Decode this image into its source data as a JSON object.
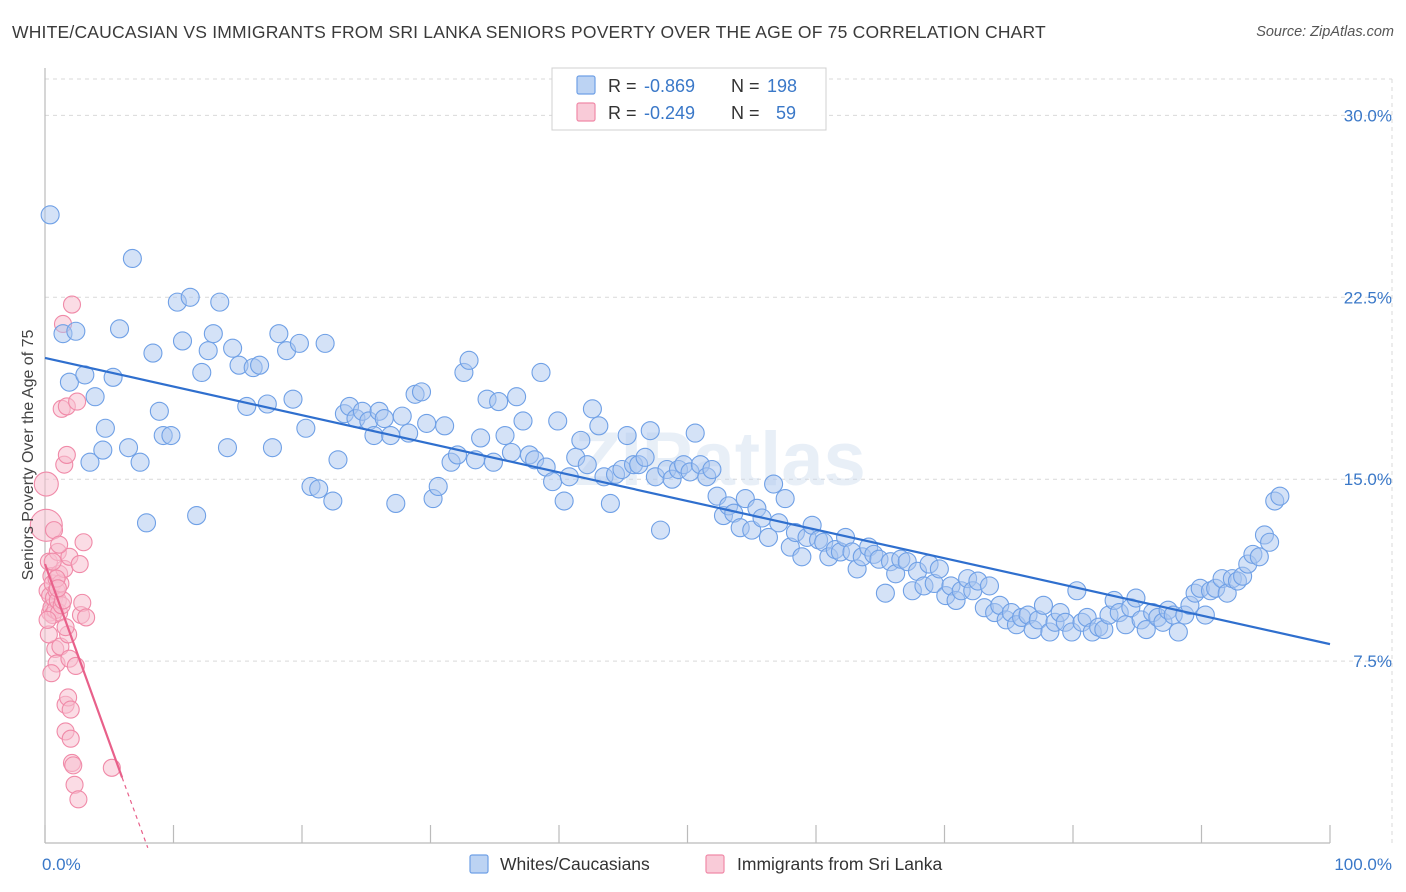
{
  "title": "WHITE/CAUCASIAN VS IMMIGRANTS FROM SRI LANKA SENIORS POVERTY OVER THE AGE OF 75 CORRELATION CHART",
  "source": "Source: ZipAtlas.com",
  "watermark": "ZIPatlas",
  "colors": {
    "blue": "#6fa0e6",
    "blue_fill": "#a9c6f0",
    "blue_line": "#2f6fce",
    "pink": "#f08aa8",
    "pink_fill": "#f7bfd0",
    "pink_line": "#e8608a",
    "tick_label": "#3a78c8",
    "grid": "#d9d9d9"
  },
  "legend_top": {
    "rows": [
      {
        "r_label": "R =",
        "r_value": "-0.869",
        "n_label": "N =",
        "n_value": "198"
      },
      {
        "r_label": "R =",
        "r_value": "-0.249",
        "n_label": "N =",
        "n_value": "59"
      }
    ]
  },
  "legend_bottom": [
    "Whites/Caucasians",
    "Immigrants from Sri Lanka"
  ],
  "chart_data": {
    "type": "scatter",
    "title": "WHITE/CAUCASIAN VS IMMIGRANTS FROM SRI LANKA SENIORS POVERTY OVER THE AGE OF 75 CORRELATION CHART",
    "xlabel": "",
    "ylabel": "Seniors Poverty Over the Age of 75",
    "xlim": [
      0,
      100
    ],
    "ylim": [
      0,
      31.5
    ],
    "x_tick_labels": [
      "0.0%",
      "100.0%"
    ],
    "y_ticks": [
      7.5,
      15.0,
      22.5,
      30.0
    ],
    "y_tick_labels": [
      "7.5%",
      "15.0%",
      "22.5%",
      "30.0%"
    ],
    "grid": true,
    "legend_position": "top-center",
    "series": [
      {
        "name": "Whites/Caucasians",
        "R": -0.869,
        "N": 198,
        "trend": {
          "x": [
            0,
            100
          ],
          "y": [
            20.0,
            8.2
          ]
        },
        "points": [
          [
            0.4,
            25.9
          ],
          [
            1.4,
            21.0
          ],
          [
            1.9,
            19.0
          ],
          [
            2.4,
            21.1
          ],
          [
            3.1,
            19.3
          ],
          [
            3.5,
            15.7
          ],
          [
            3.9,
            18.4
          ],
          [
            4.5,
            16.2
          ],
          [
            4.7,
            17.1
          ],
          [
            5.3,
            19.2
          ],
          [
            5.8,
            21.2
          ],
          [
            6.5,
            16.3
          ],
          [
            6.8,
            24.1
          ],
          [
            7.4,
            15.7
          ],
          [
            7.9,
            13.2
          ],
          [
            8.4,
            20.2
          ],
          [
            8.9,
            17.8
          ],
          [
            9.2,
            16.8
          ],
          [
            9.8,
            16.8
          ],
          [
            10.3,
            22.3
          ],
          [
            10.7,
            20.7
          ],
          [
            11.3,
            22.5
          ],
          [
            11.8,
            13.5
          ],
          [
            12.2,
            19.4
          ],
          [
            12.7,
            20.3
          ],
          [
            13.1,
            21.0
          ],
          [
            13.6,
            22.3
          ],
          [
            14.2,
            16.3
          ],
          [
            14.6,
            20.4
          ],
          [
            15.1,
            19.7
          ],
          [
            15.7,
            18.0
          ],
          [
            16.2,
            19.6
          ],
          [
            16.7,
            19.7
          ],
          [
            17.3,
            18.1
          ],
          [
            17.7,
            16.3
          ],
          [
            18.2,
            21.0
          ],
          [
            18.8,
            20.3
          ],
          [
            19.3,
            18.3
          ],
          [
            19.8,
            20.6
          ],
          [
            20.3,
            17.1
          ],
          [
            20.7,
            14.7
          ],
          [
            21.3,
            14.6
          ],
          [
            21.8,
            20.6
          ],
          [
            22.4,
            14.1
          ],
          [
            22.8,
            15.8
          ],
          [
            23.3,
            17.7
          ],
          [
            23.7,
            18.0
          ],
          [
            24.2,
            17.5
          ],
          [
            24.7,
            17.8
          ],
          [
            25.2,
            17.4
          ],
          [
            25.6,
            16.8
          ],
          [
            26.0,
            17.8
          ],
          [
            26.4,
            17.5
          ],
          [
            26.9,
            16.8
          ],
          [
            27.3,
            14.0
          ],
          [
            27.8,
            17.6
          ],
          [
            28.3,
            16.9
          ],
          [
            28.8,
            18.5
          ],
          [
            29.3,
            18.6
          ],
          [
            29.7,
            17.3
          ],
          [
            30.2,
            14.2
          ],
          [
            30.6,
            14.7
          ],
          [
            31.1,
            17.2
          ],
          [
            31.6,
            15.7
          ],
          [
            32.1,
            16.0
          ],
          [
            32.6,
            19.4
          ],
          [
            33.0,
            19.9
          ],
          [
            33.5,
            15.8
          ],
          [
            33.9,
            16.7
          ],
          [
            34.4,
            18.3
          ],
          [
            34.9,
            15.7
          ],
          [
            35.3,
            18.2
          ],
          [
            35.8,
            16.8
          ],
          [
            36.3,
            16.1
          ],
          [
            36.7,
            18.4
          ],
          [
            37.2,
            17.4
          ],
          [
            37.7,
            16.0
          ],
          [
            38.1,
            15.8
          ],
          [
            38.6,
            19.4
          ],
          [
            39.0,
            15.5
          ],
          [
            39.5,
            14.9
          ],
          [
            39.9,
            17.4
          ],
          [
            40.4,
            14.1
          ],
          [
            40.8,
            15.1
          ],
          [
            41.3,
            15.9
          ],
          [
            41.7,
            16.6
          ],
          [
            42.2,
            15.6
          ],
          [
            42.6,
            17.9
          ],
          [
            43.1,
            17.2
          ],
          [
            43.5,
            15.1
          ],
          [
            44.0,
            14.0
          ],
          [
            44.4,
            15.2
          ],
          [
            44.9,
            15.4
          ],
          [
            45.3,
            16.8
          ],
          [
            45.8,
            15.6
          ],
          [
            46.2,
            15.6
          ],
          [
            46.7,
            15.9
          ],
          [
            47.1,
            17.0
          ],
          [
            47.5,
            15.1
          ],
          [
            47.9,
            12.9
          ],
          [
            48.4,
            15.4
          ],
          [
            48.8,
            15.0
          ],
          [
            49.3,
            15.4
          ],
          [
            49.7,
            15.6
          ],
          [
            50.2,
            15.3
          ],
          [
            50.6,
            16.9
          ],
          [
            51.0,
            15.6
          ],
          [
            51.5,
            15.1
          ],
          [
            51.9,
            15.4
          ],
          [
            52.3,
            14.3
          ],
          [
            52.8,
            13.5
          ],
          [
            53.2,
            13.9
          ],
          [
            53.6,
            13.6
          ],
          [
            54.1,
            13.0
          ],
          [
            54.5,
            14.2
          ],
          [
            55.0,
            12.9
          ],
          [
            55.4,
            13.8
          ],
          [
            55.8,
            13.4
          ],
          [
            56.3,
            12.6
          ],
          [
            56.7,
            14.8
          ],
          [
            57.1,
            13.2
          ],
          [
            57.6,
            14.2
          ],
          [
            58.0,
            12.2
          ],
          [
            58.4,
            12.8
          ],
          [
            58.9,
            11.8
          ],
          [
            59.3,
            12.6
          ],
          [
            59.7,
            13.1
          ],
          [
            60.2,
            12.5
          ],
          [
            60.6,
            12.4
          ],
          [
            61.0,
            11.8
          ],
          [
            61.5,
            12.1
          ],
          [
            61.9,
            12.0
          ],
          [
            62.3,
            12.6
          ],
          [
            62.8,
            12.0
          ],
          [
            63.2,
            11.3
          ],
          [
            63.6,
            11.8
          ],
          [
            64.1,
            12.2
          ],
          [
            64.5,
            11.9
          ],
          [
            64.9,
            11.7
          ],
          [
            65.4,
            10.3
          ],
          [
            65.8,
            11.6
          ],
          [
            66.2,
            11.1
          ],
          [
            66.6,
            11.7
          ],
          [
            67.1,
            11.6
          ],
          [
            67.5,
            10.4
          ],
          [
            67.9,
            11.2
          ],
          [
            68.4,
            10.6
          ],
          [
            68.8,
            11.5
          ],
          [
            69.2,
            10.7
          ],
          [
            69.6,
            11.3
          ],
          [
            70.1,
            10.2
          ],
          [
            70.5,
            10.6
          ],
          [
            70.9,
            10.0
          ],
          [
            71.3,
            10.4
          ],
          [
            71.8,
            10.9
          ],
          [
            72.2,
            10.4
          ],
          [
            72.6,
            10.8
          ],
          [
            73.1,
            9.7
          ],
          [
            73.5,
            10.6
          ],
          [
            73.9,
            9.5
          ],
          [
            74.3,
            9.8
          ],
          [
            74.8,
            9.2
          ],
          [
            75.2,
            9.5
          ],
          [
            75.6,
            9.0
          ],
          [
            76.0,
            9.3
          ],
          [
            76.5,
            9.4
          ],
          [
            76.9,
            8.8
          ],
          [
            77.3,
            9.2
          ],
          [
            77.7,
            9.8
          ],
          [
            78.2,
            8.7
          ],
          [
            78.6,
            9.1
          ],
          [
            79.0,
            9.5
          ],
          [
            79.4,
            9.1
          ],
          [
            79.9,
            8.7
          ],
          [
            80.3,
            10.4
          ],
          [
            80.7,
            9.1
          ],
          [
            81.1,
            9.3
          ],
          [
            81.5,
            8.7
          ],
          [
            82.0,
            8.9
          ],
          [
            82.4,
            8.8
          ],
          [
            82.8,
            9.4
          ],
          [
            83.2,
            10.0
          ],
          [
            83.6,
            9.5
          ],
          [
            84.1,
            9.0
          ],
          [
            84.5,
            9.7
          ],
          [
            84.9,
            10.1
          ],
          [
            85.3,
            9.2
          ],
          [
            85.7,
            8.8
          ],
          [
            86.2,
            9.5
          ],
          [
            86.6,
            9.3
          ],
          [
            87.0,
            9.1
          ],
          [
            87.4,
            9.6
          ],
          [
            87.8,
            9.4
          ],
          [
            88.2,
            8.7
          ],
          [
            88.7,
            9.4
          ],
          [
            89.1,
            9.8
          ],
          [
            89.5,
            10.3
          ],
          [
            89.9,
            10.5
          ],
          [
            90.3,
            9.4
          ],
          [
            90.7,
            10.4
          ],
          [
            91.1,
            10.5
          ],
          [
            91.6,
            10.9
          ],
          [
            92.0,
            10.3
          ],
          [
            92.4,
            10.9
          ],
          [
            92.8,
            10.8
          ],
          [
            93.2,
            11.0
          ],
          [
            93.6,
            11.5
          ],
          [
            94.0,
            11.9
          ],
          [
            94.5,
            11.8
          ],
          [
            94.9,
            12.7
          ],
          [
            95.3,
            12.4
          ],
          [
            95.7,
            14.1
          ],
          [
            96.1,
            14.3
          ]
        ]
      },
      {
        "name": "Immigrants from Sri Lanka",
        "R": -0.249,
        "N": 59,
        "trend": {
          "x": [
            0,
            6.0
          ],
          "y": [
            11.5,
            2.7
          ]
        },
        "trend_dashed": {
          "x": [
            6.0,
            8.0
          ],
          "y": [
            2.7,
            -0.2
          ]
        },
        "points": [
          [
            0.1,
            14.8
          ],
          [
            0.1,
            13.1
          ],
          [
            0.2,
            10.4
          ],
          [
            0.3,
            11.6
          ],
          [
            0.4,
            10.2
          ],
          [
            0.4,
            9.5
          ],
          [
            0.5,
            11.0
          ],
          [
            0.5,
            9.7
          ],
          [
            0.6,
            10.7
          ],
          [
            0.6,
            9.4
          ],
          [
            0.7,
            10.1
          ],
          [
            0.7,
            12.9
          ],
          [
            0.8,
            8.0
          ],
          [
            0.8,
            9.6
          ],
          [
            0.9,
            10.4
          ],
          [
            0.9,
            7.4
          ],
          [
            1.0,
            10.0
          ],
          [
            1.0,
            12.0
          ],
          [
            1.1,
            9.5
          ],
          [
            1.1,
            11.1
          ],
          [
            1.2,
            8.1
          ],
          [
            1.2,
            10.7
          ],
          [
            1.3,
            9.8
          ],
          [
            1.3,
            17.9
          ],
          [
            1.4,
            21.4
          ],
          [
            1.4,
            10.0
          ],
          [
            1.5,
            11.3
          ],
          [
            1.5,
            15.6
          ],
          [
            1.6,
            5.7
          ],
          [
            1.6,
            4.6
          ],
          [
            1.7,
            16.0
          ],
          [
            1.7,
            18.0
          ],
          [
            1.8,
            6.0
          ],
          [
            1.8,
            8.6
          ],
          [
            1.9,
            7.6
          ],
          [
            1.9,
            11.8
          ],
          [
            2.0,
            5.5
          ],
          [
            2.0,
            4.3
          ],
          [
            2.1,
            22.2
          ],
          [
            2.1,
            3.3
          ],
          [
            2.2,
            3.2
          ],
          [
            2.3,
            2.4
          ],
          [
            2.4,
            7.3
          ],
          [
            2.5,
            18.2
          ],
          [
            2.6,
            1.8
          ],
          [
            2.7,
            11.5
          ],
          [
            2.8,
            9.4
          ],
          [
            2.9,
            9.9
          ],
          [
            3.0,
            12.4
          ],
          [
            0.3,
            8.6
          ],
          [
            0.5,
            7.0
          ],
          [
            0.9,
            10.9
          ],
          [
            1.1,
            12.3
          ],
          [
            1.6,
            8.9
          ],
          [
            0.2,
            9.2
          ],
          [
            1.0,
            10.5
          ],
          [
            0.6,
            11.6
          ],
          [
            3.2,
            9.3
          ],
          [
            5.2,
            3.1
          ]
        ]
      }
    ]
  }
}
